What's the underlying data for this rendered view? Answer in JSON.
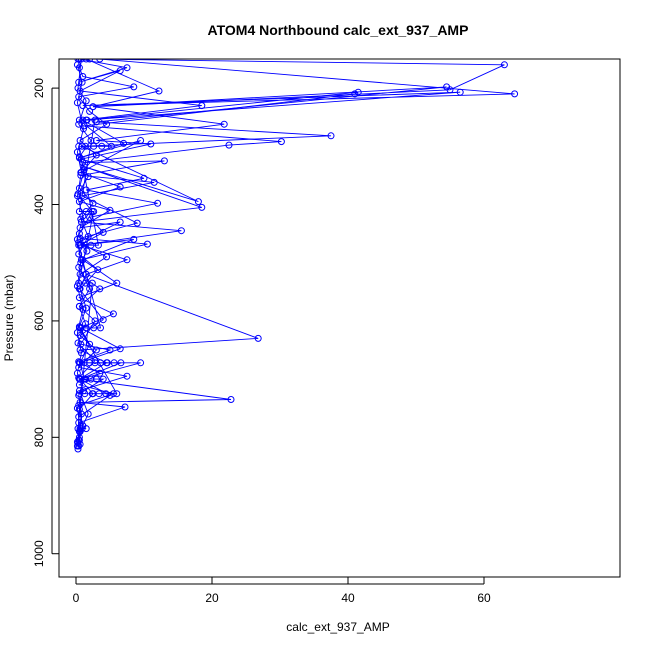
{
  "chart_data": {
    "type": "scatter",
    "title": "ATOM4 Northbound calc_ext_937_AMP",
    "xlabel": "calc_ext_937_AMP",
    "ylabel": "Pressure (mbar)",
    "xlim": [
      -2.5,
      80
    ],
    "ylim": [
      1040,
      150
    ],
    "y_reversed": true,
    "grid": false,
    "x_ticks": [
      0,
      20,
      40,
      60
    ],
    "y_ticks": [
      200,
      400,
      600,
      800,
      1000
    ],
    "series_color": "#0000ff",
    "marker": "open-circle",
    "series": [
      {
        "name": "",
        "points": [
          [
            0.3,
            150
          ],
          [
            0.5,
            165
          ],
          [
            1.0,
            180
          ],
          [
            8.5,
            198
          ],
          [
            0.4,
            215
          ],
          [
            2.0,
            240
          ],
          [
            4.5,
            262
          ],
          [
            0.6,
            290
          ],
          [
            3.0,
            315
          ],
          [
            1.2,
            340
          ],
          [
            0.5,
            372
          ],
          [
            2.5,
            398
          ],
          [
            0.7,
            425
          ],
          [
            1.8,
            455
          ],
          [
            0.4,
            485
          ],
          [
            3.2,
            512
          ],
          [
            0.6,
            545
          ],
          [
            1.5,
            578
          ],
          [
            0.5,
            610
          ],
          [
            2.0,
            640
          ],
          [
            0.6,
            672
          ],
          [
            1.2,
            700
          ],
          [
            0.4,
            728
          ],
          [
            0.8,
            760
          ],
          [
            0.5,
            790
          ],
          [
            0.4,
            815
          ]
        ]
      },
      {
        "name": "",
        "points": [
          [
            1.5,
            150
          ],
          [
            12.2,
            205
          ],
          [
            2.5,
            232
          ],
          [
            21.8,
            262
          ],
          [
            3.0,
            290
          ],
          [
            11.0,
            296
          ],
          [
            0.8,
            322
          ],
          [
            10.0,
            355
          ],
          [
            1.5,
            375
          ],
          [
            12.0,
            398
          ],
          [
            2.0,
            422
          ],
          [
            4.0,
            448
          ],
          [
            0.6,
            470
          ],
          [
            8.5,
            460
          ],
          [
            1.0,
            495
          ],
          [
            6.0,
            535
          ],
          [
            0.5,
            560
          ],
          [
            5.5,
            588
          ],
          [
            0.7,
            612
          ],
          [
            6.5,
            648
          ],
          [
            0.5,
            672
          ],
          [
            9.5,
            672
          ],
          [
            0.6,
            700
          ],
          [
            5.0,
            728
          ],
          [
            0.4,
            765
          ],
          [
            0.3,
            810
          ]
        ]
      },
      {
        "name": "",
        "points": [
          [
            2.0,
            150
          ],
          [
            63.0,
            160
          ],
          [
            55.0,
            203
          ],
          [
            2.5,
            232
          ],
          [
            54.5,
            198
          ],
          [
            3.0,
            258
          ],
          [
            37.5,
            282
          ],
          [
            0.9,
            300
          ],
          [
            18.0,
            395
          ],
          [
            1.2,
            335
          ],
          [
            18.5,
            405
          ],
          [
            0.8,
            430
          ],
          [
            15.5,
            445
          ],
          [
            0.7,
            470
          ],
          [
            7.5,
            495
          ],
          [
            1.5,
            520
          ],
          [
            26.8,
            630
          ],
          [
            0.6,
            650
          ],
          [
            4.5,
            672
          ],
          [
            0.5,
            700
          ],
          [
            22.8,
            735
          ],
          [
            0.6,
            740
          ],
          [
            7.2,
            748
          ],
          [
            0.4,
            775
          ],
          [
            0.5,
            800
          ],
          [
            0.6,
            812
          ]
        ]
      },
      {
        "name": "",
        "points": [
          [
            3.5,
            150
          ],
          [
            64.5,
            210
          ],
          [
            1.0,
            230
          ],
          [
            56.5,
            207
          ],
          [
            1.5,
            255
          ],
          [
            41.5,
            207
          ],
          [
            41.0,
            210
          ],
          [
            1.2,
            265
          ],
          [
            30.2,
            292
          ],
          [
            22.5,
            298
          ],
          [
            1.0,
            328
          ],
          [
            13.0,
            325
          ],
          [
            0.7,
            350
          ],
          [
            11.5,
            362
          ],
          [
            0.9,
            385
          ],
          [
            9.0,
            432
          ],
          [
            0.6,
            458
          ],
          [
            10.5,
            468
          ],
          [
            0.8,
            495
          ],
          [
            1.5,
            520
          ],
          [
            0.5,
            545
          ],
          [
            4.0,
            598
          ],
          [
            0.6,
            625
          ],
          [
            3.0,
            650
          ],
          [
            0.4,
            680
          ],
          [
            7.5,
            695
          ],
          [
            0.5,
            720
          ],
          [
            1.8,
            760
          ],
          [
            0.6,
            790
          ],
          [
            0.3,
            820
          ]
        ]
      },
      {
        "name": "",
        "points": [
          [
            0.5,
            150
          ],
          [
            7.5,
            165
          ],
          [
            0.4,
            190
          ],
          [
            6.5,
            170
          ],
          [
            0.6,
            205
          ],
          [
            18.5,
            230
          ],
          [
            1.0,
            255
          ],
          [
            7.0,
            295
          ],
          [
            0.5,
            320
          ],
          [
            9.5,
            290
          ],
          [
            0.7,
            345
          ],
          [
            6.5,
            370
          ],
          [
            0.5,
            395
          ],
          [
            5.0,
            410
          ],
          [
            0.6,
            440
          ],
          [
            6.5,
            430
          ],
          [
            0.4,
            465
          ],
          [
            4.5,
            490
          ],
          [
            0.6,
            520
          ],
          [
            3.5,
            545
          ],
          [
            0.5,
            575
          ],
          [
            2.8,
            600
          ],
          [
            0.7,
            640
          ],
          [
            5.0,
            650
          ],
          [
            0.4,
            670
          ],
          [
            3.5,
            690
          ],
          [
            0.5,
            710
          ],
          [
            5.5,
            725
          ],
          [
            0.4,
            745
          ],
          [
            1.0,
            780
          ],
          [
            0.5,
            805
          ]
        ]
      },
      {
        "name": "",
        "points": [
          [
            0.8,
            150
          ],
          [
            0.3,
            200
          ],
          [
            1.5,
            222
          ],
          [
            0.4,
            262
          ],
          [
            2.2,
            290
          ],
          [
            0.5,
            318
          ],
          [
            1.8,
            352
          ],
          [
            0.3,
            382
          ],
          [
            2.4,
            412
          ],
          [
            0.5,
            450
          ],
          [
            1.6,
            480
          ],
          [
            0.4,
            508
          ],
          [
            2.0,
            545
          ],
          [
            0.5,
            575
          ],
          [
            1.4,
            605
          ],
          [
            0.3,
            638
          ],
          [
            2.8,
            668
          ],
          [
            0.4,
            698
          ],
          [
            2.5,
            725
          ],
          [
            0.5,
            752
          ],
          [
            1.0,
            780
          ],
          [
            0.4,
            805
          ],
          [
            0.2,
            815
          ]
        ]
      },
      {
        "name": "",
        "points": [
          [
            0.2,
            160
          ],
          [
            0.9,
            190
          ],
          [
            0.2,
            225
          ],
          [
            1.1,
            270
          ],
          [
            0.2,
            310
          ],
          [
            0.8,
            345
          ],
          [
            0.2,
            385
          ],
          [
            1.0,
            420
          ],
          [
            0.2,
            460
          ],
          [
            0.7,
            500
          ],
          [
            0.2,
            540
          ],
          [
            1.0,
            580
          ],
          [
            0.2,
            620
          ],
          [
            0.8,
            655
          ],
          [
            0.2,
            690
          ],
          [
            1.1,
            720
          ],
          [
            0.2,
            750
          ],
          [
            0.6,
            785
          ],
          [
            0.2,
            808
          ]
        ]
      },
      {
        "name": "",
        "points": [
          [
            0.5,
            672
          ],
          [
            1.2,
            672
          ],
          [
            2.0,
            672
          ],
          [
            2.8,
            672
          ],
          [
            3.6,
            672
          ],
          [
            4.6,
            672
          ],
          [
            5.6,
            672
          ],
          [
            6.6,
            672
          ],
          [
            0.6,
            700
          ],
          [
            1.4,
            700
          ],
          [
            2.2,
            700
          ],
          [
            3.0,
            700
          ],
          [
            4.0,
            700
          ],
          [
            0.5,
            725
          ],
          [
            1.3,
            725
          ],
          [
            2.4,
            725
          ],
          [
            3.4,
            725
          ],
          [
            4.4,
            725
          ],
          [
            6.0,
            725
          ],
          [
            0.5,
            612
          ],
          [
            1.5,
            612
          ],
          [
            2.6,
            612
          ],
          [
            3.6,
            612
          ],
          [
            0.4,
            470
          ],
          [
            1.3,
            470
          ],
          [
            2.2,
            470
          ],
          [
            3.3,
            470
          ],
          [
            0.4,
            300
          ],
          [
            1.4,
            300
          ],
          [
            2.6,
            300
          ],
          [
            3.8,
            300
          ],
          [
            5.2,
            300
          ],
          [
            0.5,
            255
          ],
          [
            1.6,
            255
          ],
          [
            2.8,
            255
          ],
          [
            0.5,
            412
          ],
          [
            1.5,
            412
          ],
          [
            2.6,
            412
          ],
          [
            0.4,
            535
          ],
          [
            1.4,
            535
          ],
          [
            2.4,
            535
          ],
          [
            0.3,
            785
          ],
          [
            0.9,
            785
          ],
          [
            1.5,
            785
          ]
        ]
      }
    ]
  }
}
